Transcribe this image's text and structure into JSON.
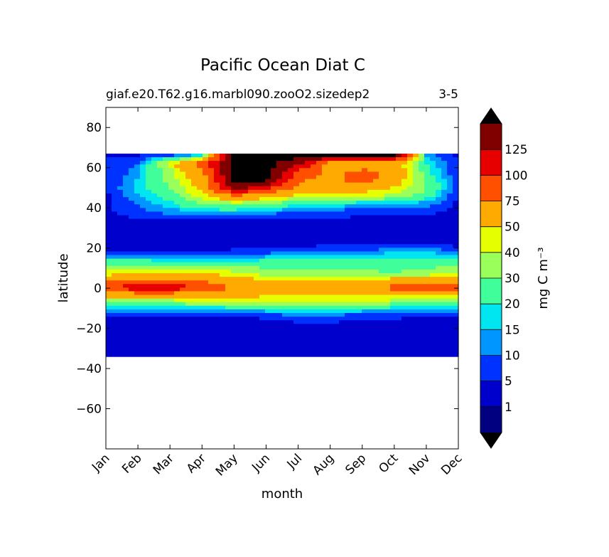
{
  "chart_data": {
    "type": "heatmap",
    "title": "Pacific Ocean Diat C",
    "subtitle_left": "giaf.e20.T62.g16.marbl090.zooO2.sizedep2",
    "subtitle_right": "3-5",
    "xlabel": "month",
    "ylabel": "latitude",
    "x_ticks": [
      "Jan",
      "Feb",
      "Mar",
      "Apr",
      "May",
      "Jun",
      "Jul",
      "Aug",
      "Sep",
      "Oct",
      "Nov",
      "Dec"
    ],
    "y_ticks": [
      80,
      60,
      40,
      20,
      0,
      -20,
      -40,
      -60
    ],
    "ylim": [
      -80,
      90
    ],
    "data_lat_range": [
      -34,
      67
    ],
    "colorbar": {
      "label": "mg C m⁻³",
      "levels": [
        0,
        1,
        5,
        10,
        15,
        20,
        30,
        40,
        50,
        75,
        100,
        125,
        150
      ],
      "tick_labels": [
        "1",
        "5",
        "10",
        "15",
        "20",
        "30",
        "40",
        "50",
        "75",
        "100",
        "125"
      ],
      "colors": [
        "#000080",
        "#0000cd",
        "#0032ff",
        "#0096ff",
        "#00e6f0",
        "#40ff9a",
        "#9aff5a",
        "#e6ff00",
        "#ffaa00",
        "#ff5000",
        "#e60000",
        "#800000"
      ],
      "over_color": "#000000",
      "under_color": "#000000",
      "extend": "both"
    },
    "latitudes": [
      66,
      62,
      58,
      54,
      50,
      46,
      42,
      38,
      34,
      30,
      26,
      22,
      18,
      14,
      10,
      6,
      2,
      0,
      -2,
      -6,
      -10,
      -14,
      -18,
      -22,
      -26,
      -30,
      -33
    ],
    "months": [
      1,
      2,
      3,
      4,
      5,
      6,
      7,
      8,
      9,
      10,
      11,
      12
    ],
    "values": [
      [
        4,
        5,
        8,
        18,
        160,
        160,
        160,
        160,
        160,
        150,
        12,
        4
      ],
      [
        6,
        10,
        45,
        90,
        160,
        160,
        130,
        60,
        60,
        60,
        20,
        5
      ],
      [
        5,
        12,
        35,
        70,
        160,
        160,
        95,
        70,
        80,
        70,
        22,
        5
      ],
      [
        5,
        15,
        35,
        60,
        160,
        160,
        80,
        65,
        90,
        60,
        28,
        5
      ],
      [
        5,
        17,
        30,
        55,
        140,
        110,
        72,
        60,
        60,
        50,
        30,
        5
      ],
      [
        4,
        14,
        25,
        45,
        75,
        60,
        45,
        40,
        42,
        38,
        25,
        4
      ],
      [
        4,
        11,
        18,
        30,
        35,
        30,
        20,
        20,
        15,
        15,
        12,
        4
      ],
      [
        4,
        8,
        12,
        16,
        15,
        12,
        10,
        8,
        6,
        6,
        6,
        4
      ],
      [
        3,
        4,
        4,
        5,
        5,
        4,
        4,
        4,
        4,
        4,
        4,
        3
      ],
      [
        3,
        3,
        3,
        3,
        3,
        3,
        3,
        3,
        3,
        3,
        3,
        3
      ],
      [
        3,
        3,
        3,
        3,
        3,
        3,
        3,
        3,
        3,
        3,
        3,
        3
      ],
      [
        3,
        3,
        3,
        3,
        3,
        3,
        3,
        3,
        3,
        3,
        3,
        3
      ],
      [
        5,
        5,
        5,
        5,
        6,
        8,
        10,
        12,
        12,
        14,
        15,
        10
      ],
      [
        20,
        20,
        18,
        18,
        18,
        20,
        24,
        25,
        25,
        24,
        22,
        20
      ],
      [
        40,
        38,
        38,
        36,
        32,
        30,
        30,
        25,
        25,
        22,
        30,
        32
      ],
      [
        50,
        60,
        60,
        55,
        50,
        40,
        40,
        40,
        40,
        40,
        40,
        50
      ],
      [
        85,
        100,
        100,
        85,
        65,
        60,
        55,
        55,
        55,
        75,
        85,
        80
      ],
      [
        110,
        110,
        110,
        110,
        70,
        60,
        55,
        55,
        60,
        85,
        100,
        95
      ],
      [
        75,
        80,
        80,
        75,
        60,
        55,
        55,
        55,
        55,
        60,
        60,
        60
      ],
      [
        30,
        40,
        40,
        45,
        45,
        45,
        45,
        42,
        42,
        40,
        40,
        35
      ],
      [
        14,
        15,
        16,
        16,
        18,
        20,
        25,
        25,
        20,
        18,
        15,
        14
      ],
      [
        4,
        4,
        4,
        4,
        4,
        6,
        8,
        8,
        6,
        6,
        4,
        4
      ],
      [
        3,
        3,
        3,
        3,
        3,
        3,
        4,
        4,
        4,
        4,
        3,
        3
      ],
      [
        3,
        3,
        3,
        3,
        3,
        3,
        3,
        3,
        3,
        3,
        3,
        3
      ],
      [
        3,
        3,
        3,
        3,
        3,
        3,
        3,
        3,
        3,
        3,
        3,
        3
      ],
      [
        3,
        3,
        3,
        3,
        3,
        3,
        3,
        3,
        3,
        3,
        3,
        3
      ],
      [
        3,
        3,
        3,
        3,
        3,
        3,
        3,
        3,
        3,
        3,
        3,
        3
      ]
    ]
  }
}
